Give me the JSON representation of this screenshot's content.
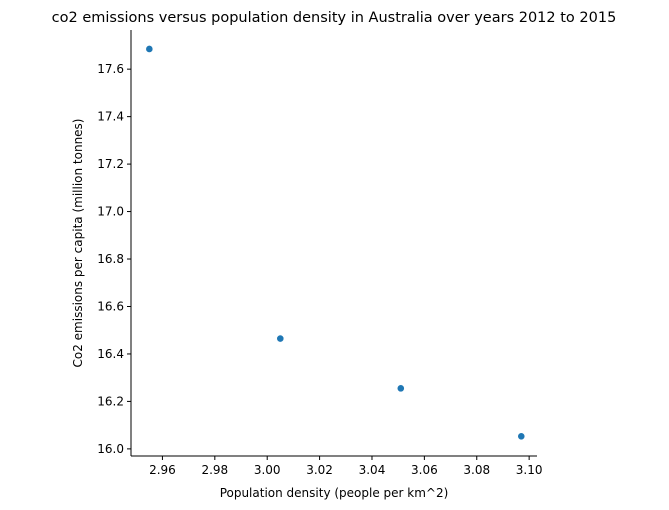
{
  "chart_data": {
    "type": "scatter",
    "title": "co2 emissions versus population density in Australia over years 2012 to 2015",
    "xlabel": "Population density (people per km^2)",
    "ylabel": "Co2 emissions per capita (million tonnes)",
    "xlim": [
      2.948,
      3.103
    ],
    "ylim": [
      15.97,
      17.765
    ],
    "xticks": [
      "2.96",
      "2.98",
      "3.00",
      "3.02",
      "3.04",
      "3.06",
      "3.08",
      "3.10"
    ],
    "yticks": [
      "16.0",
      "16.2",
      "16.4",
      "16.6",
      "16.8",
      "17.0",
      "17.2",
      "17.4",
      "17.6"
    ],
    "grid": false,
    "points": [
      {
        "x": 2.955,
        "y": 17.685
      },
      {
        "x": 3.005,
        "y": 16.465
      },
      {
        "x": 3.051,
        "y": 16.255
      },
      {
        "x": 3.097,
        "y": 16.053
      }
    ],
    "marker_color": "#1f77b4"
  }
}
